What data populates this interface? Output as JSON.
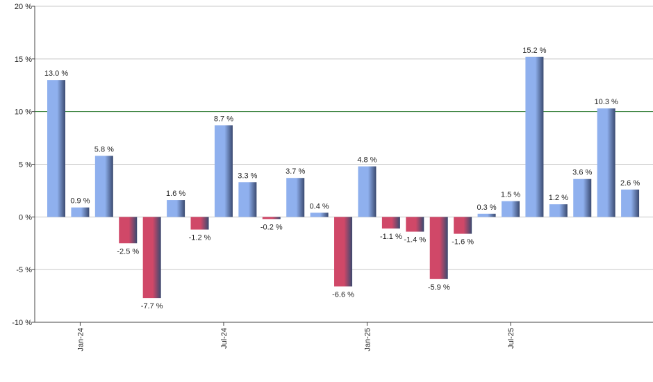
{
  "chart_data": {
    "type": "bar",
    "categories": [
      null,
      "Jan-24",
      null,
      null,
      null,
      null,
      null,
      "Jul-24",
      null,
      null,
      null,
      null,
      null,
      "Jan-25",
      null,
      null,
      null,
      null,
      null,
      "Jul-25",
      null,
      null,
      null,
      null,
      null
    ],
    "values": [
      13.0,
      0.9,
      5.8,
      -2.5,
      -7.7,
      1.6,
      -1.2,
      8.7,
      3.3,
      -0.2,
      3.7,
      0.4,
      -6.6,
      4.8,
      -1.1,
      -1.4,
      -5.9,
      -1.6,
      0.3,
      1.5,
      15.2,
      1.2,
      3.6,
      10.3,
      2.6
    ],
    "value_labels": [
      "13.0 %",
      "0.9 %",
      "5.8 %",
      "-2.5 %",
      "-7.7 %",
      "1.6 %",
      "-1.2 %",
      "8.7 %",
      "3.3 %",
      "-0.2 %",
      "3.7 %",
      "0.4 %",
      "-6.6 %",
      "4.8 %",
      "-1.1 %",
      "-1.4 %",
      "-5.9 %",
      "-1.6 %",
      "0.3 %",
      "1.5 %",
      "15.2 %",
      "1.2 %",
      "3.6 %",
      "10.3 %",
      "2.6 %"
    ],
    "positive_color": "#8fb0ee",
    "negative_color": "#d04868",
    "ylim": [
      -10,
      20
    ],
    "yticks": [
      {
        "value": -10,
        "label": "-10 %"
      },
      {
        "value": -5,
        "label": "-5 %"
      },
      {
        "value": 0,
        "label": "0 %"
      },
      {
        "value": 5,
        "label": "5 %"
      },
      {
        "value": 10,
        "label": "10 %"
      },
      {
        "value": 15,
        "label": "15 %"
      },
      {
        "value": 20,
        "label": "20 %"
      }
    ],
    "grid": true,
    "reference_line": 10,
    "reference_color": "#2e7d32"
  }
}
